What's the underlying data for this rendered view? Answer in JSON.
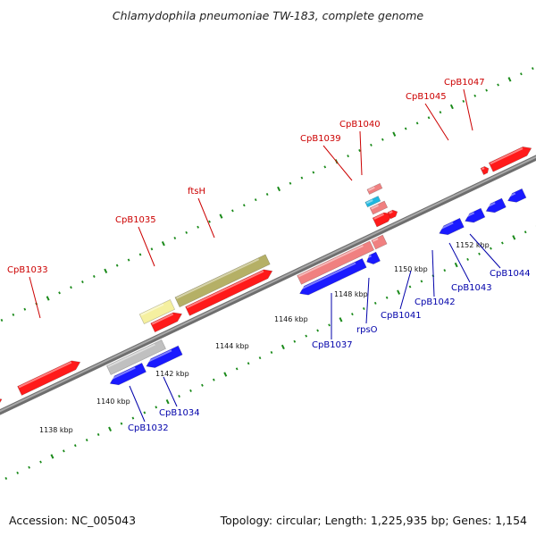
{
  "title": "Chlamydophila pneumoniae TW-183, complete genome",
  "footer": {
    "accession": "Accession: NC_005043",
    "topology": "Topology: circular; Length: 1,225,935 bp; Genes: 1,154"
  },
  "colors": {
    "forward_red": "#ff1a1a",
    "reverse_blue": "#1a1aff",
    "pink": "#f08080",
    "olive": "#b5b066",
    "pale_yellow": "#f5f0a0",
    "grey": "#c0c0c0",
    "cyan": "#20b8e0",
    "backbone": "#7a7a7a",
    "tick_green": "#1a8a1a",
    "label_red": "#cc0000",
    "label_blue": "#0000aa"
  },
  "kbp_labels": [
    "1138 kbp",
    "1140 kbp",
    "1142 kbp",
    "1144 kbp",
    "1146 kbp",
    "1148 kbp",
    "1150 kbp",
    "1152 kbp"
  ],
  "forward_labels": [
    "CpB1033",
    "CpB1035",
    "ftsH",
    "CpB1039",
    "CpB1040",
    "CpB1045",
    "CpB1047"
  ],
  "reverse_labels": [
    "CpB1032",
    "CpB1034",
    "CpB1037",
    "rpsO",
    "CpB1041",
    "CpB1042",
    "CpB1043",
    "CpB1044"
  ]
}
